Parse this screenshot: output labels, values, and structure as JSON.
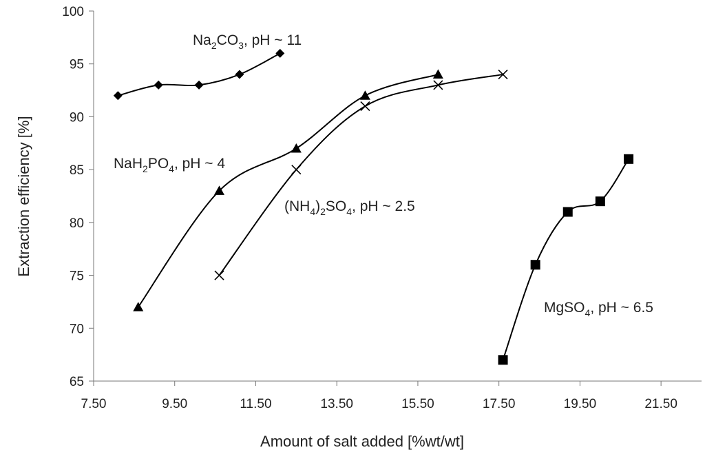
{
  "chart_data": {
    "type": "scatter",
    "title": "",
    "xlabel": "Amount of salt added [%wt/wt]",
    "ylabel": "Extraction efficiency [%]",
    "xlim": [
      7.5,
      22.5
    ],
    "ylim": [
      65,
      100
    ],
    "xticks": [
      "7.50",
      "9.50",
      "11.50",
      "13.50",
      "15.50",
      "17.50",
      "19.50",
      "21.50"
    ],
    "yticks": [
      "65",
      "70",
      "75",
      "80",
      "85",
      "90",
      "95",
      "100"
    ],
    "grid": false,
    "legend": "none",
    "series": [
      {
        "name": "Na2CO3, pH ~ 11",
        "marker": "diamond",
        "x": [
          8.1,
          9.1,
          10.1,
          11.1,
          12.1
        ],
        "y": [
          92,
          93,
          93,
          94,
          96
        ]
      },
      {
        "name": "NaH2PO4, pH ~ 4",
        "marker": "triangle",
        "x": [
          8.6,
          10.6,
          12.5,
          14.2,
          16.0
        ],
        "y": [
          72,
          83,
          87,
          92,
          94
        ]
      },
      {
        "name": "(NH4)2SO4, pH ~ 2.5",
        "marker": "cross",
        "x": [
          10.6,
          12.5,
          14.2,
          16.0,
          17.6
        ],
        "y": [
          75,
          85,
          91,
          93,
          94
        ]
      },
      {
        "name": "MgSO4, pH ~ 6.5",
        "marker": "square",
        "x": [
          17.6,
          18.4,
          19.2,
          20.0,
          20.7
        ],
        "y": [
          67,
          76,
          81,
          82,
          86
        ]
      }
    ],
    "annotations": [
      {
        "parts": [
          [
            "Na",
            ""
          ],
          [
            "2",
            "sub"
          ],
          [
            "CO",
            ""
          ],
          [
            "3",
            "sub"
          ],
          [
            ", pH ~ 11",
            ""
          ]
        ]
      },
      {
        "parts": [
          [
            "NaH",
            ""
          ],
          [
            "2",
            "sub"
          ],
          [
            "PO",
            ""
          ],
          [
            "4",
            "sub"
          ],
          [
            ", pH ~ 4",
            ""
          ]
        ]
      },
      {
        "parts": [
          [
            "(NH",
            ""
          ],
          [
            "4",
            "sub"
          ],
          [
            ")",
            ""
          ],
          [
            "2",
            "sub"
          ],
          [
            "SO",
            ""
          ],
          [
            "4",
            "sub"
          ],
          [
            ", pH ~ 2.5",
            ""
          ]
        ]
      },
      {
        "parts": [
          [
            "MgSO",
            ""
          ],
          [
            "4",
            "sub"
          ],
          [
            ", pH ~ 6.5",
            ""
          ]
        ]
      }
    ]
  }
}
